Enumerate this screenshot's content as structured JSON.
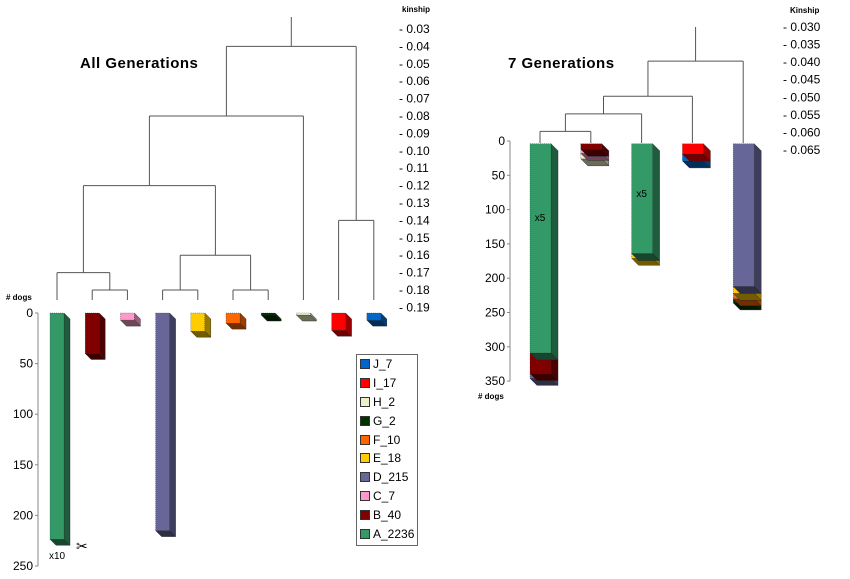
{
  "chart_data": [
    {
      "type": "bar",
      "title": "All Generations",
      "ylabel": "# dogs",
      "kinship_label": "kinship",
      "ylim": [
        0,
        250
      ],
      "yticks": [
        "0",
        "50",
        "100",
        "150",
        "200",
        "250"
      ],
      "kinship_ticks": [
        "- 0.03",
        "- 0.04",
        "- 0.05",
        "- 0.06",
        "- 0.07",
        "- 0.08",
        "- 0.09",
        "- 0.10",
        "- 0.11",
        "- 0.12",
        "- 0.13",
        "- 0.14",
        "- 0.15",
        "- 0.16",
        "- 0.17",
        "- 0.18",
        "- 0.19"
      ],
      "bars": [
        {
          "group": "A",
          "value": 223.6,
          "annotation": "x10"
        },
        {
          "group": "B",
          "value": 40
        },
        {
          "group": "C",
          "value": 7
        },
        {
          "group": "D",
          "value": 215
        },
        {
          "group": "E",
          "value": 18
        },
        {
          "group": "F",
          "value": 10
        },
        {
          "group": "G",
          "value": 2
        },
        {
          "group": "H",
          "value": 2
        },
        {
          "group": "I",
          "value": 17
        },
        {
          "group": "J",
          "value": 7
        }
      ],
      "dendrogram": {
        "k": 0.04,
        "c": [
          {
            "k": 0.08,
            "c": [
              {
                "k": 0.12,
                "c": [
                  {
                    "k": 0.17,
                    "c": [
                      "A",
                      {
                        "k": 0.18,
                        "c": [
                          "B",
                          "C"
                        ]
                      }
                    ]
                  },
                  {
                    "k": 0.16,
                    "c": [
                      {
                        "k": 0.18,
                        "c": [
                          "D",
                          "E"
                        ]
                      },
                      {
                        "k": 0.18,
                        "c": [
                          "F",
                          "G"
                        ]
                      }
                    ]
                  }
                ]
              },
              "H"
            ]
          },
          {
            "k": 0.14,
            "c": [
              "I",
              "J"
            ]
          }
        ]
      },
      "legend": [
        {
          "group": "J",
          "label": "J_7"
        },
        {
          "group": "I",
          "label": "I_17"
        },
        {
          "group": "H",
          "label": "H_2"
        },
        {
          "group": "G",
          "label": "G_2"
        },
        {
          "group": "F",
          "label": "F_10"
        },
        {
          "group": "E",
          "label": "E_18"
        },
        {
          "group": "D",
          "label": "D_215"
        },
        {
          "group": "C",
          "label": "C_7"
        },
        {
          "group": "B",
          "label": "B_40"
        },
        {
          "group": "A",
          "label": "A_2236"
        }
      ]
    },
    {
      "type": "bar",
      "title": "7 Generations",
      "ylabel": "# dogs",
      "kinship_label": "Kinship",
      "ylim": [
        0,
        350
      ],
      "yticks": [
        "0",
        "50",
        "100",
        "150",
        "200",
        "250",
        "300",
        "350"
      ],
      "kinship_ticks": [
        "- 0.030",
        "- 0.035",
        "- 0.040",
        "- 0.045",
        "- 0.050",
        "- 0.055",
        "- 0.060",
        "- 0.065"
      ],
      "stacks": [
        {
          "annotation": "x5",
          "segments": [
            {
              "group": "A",
              "value": 305
            },
            {
              "group": "B",
              "value": 30
            },
            {
              "group": "D",
              "value": 7
            }
          ]
        },
        {
          "segments": [
            {
              "group": "B",
              "value": 8
            },
            {
              "group": "C",
              "value": 6
            },
            {
              "group": "H",
              "value": 8
            }
          ]
        },
        {
          "annotation": "x5",
          "segments": [
            {
              "group": "A",
              "value": 160
            },
            {
              "group": "E",
              "value": 7
            }
          ]
        },
        {
          "segments": [
            {
              "group": "I",
              "value": 15
            },
            {
              "group": "J",
              "value": 10
            }
          ]
        },
        {
          "segments": [
            {
              "group": "D",
              "value": 208
            },
            {
              "group": "E",
              "value": 10
            },
            {
              "group": "F",
              "value": 8
            },
            {
              "group": "G",
              "value": 6
            }
          ]
        }
      ],
      "dendrogram": {
        "k": 0.04,
        "c": [
          {
            "k": 0.05,
            "c": [
              {
                "k": 0.055,
                "c": [
                  {
                    "k": 0.06,
                    "c": [
                      0,
                      1
                    ]
                  },
                  2
                ]
              },
              3
            ]
          },
          4
        ]
      }
    }
  ],
  "colors": {
    "A": "#339966",
    "B": "#800000",
    "C": "#ff99cc",
    "D": "#666699",
    "E": "#ffcc00",
    "F": "#ff6600",
    "G": "#003300",
    "H": "#eeeec8",
    "I": "#ff0000",
    "J": "#0066cc"
  },
  "scissors_icon": "scissors-icon"
}
